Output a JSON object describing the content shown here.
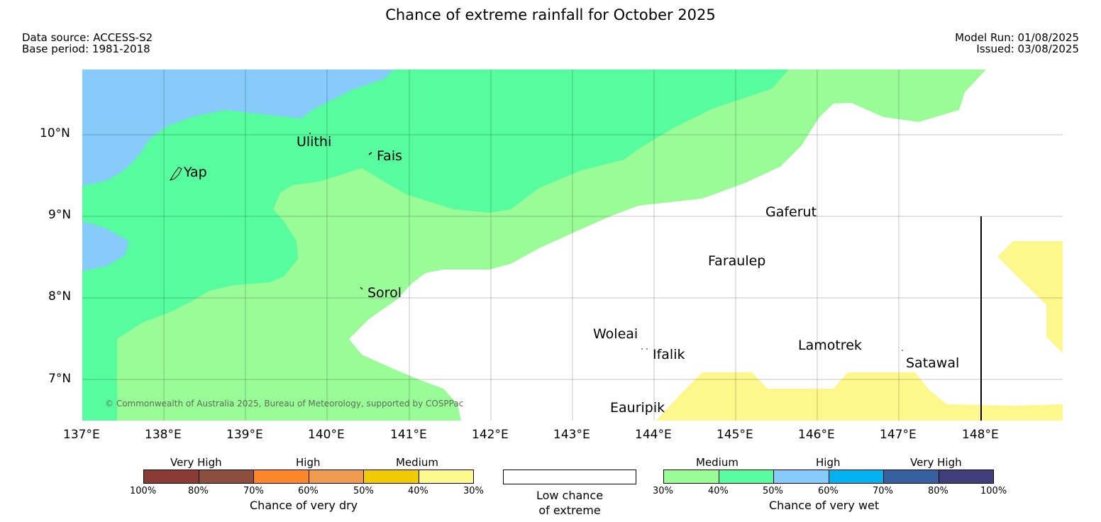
{
  "header": {
    "title": "Chance of extreme rainfall for October 2025",
    "data_source": "Data source: ACCESS-S2",
    "base_period": "Base period: 1981-2018",
    "model_run": "Model Run: 01/08/2025",
    "issued": "Issued: 03/08/2025"
  },
  "map": {
    "lat_labels": [
      "10°N",
      "9°N",
      "8°N",
      "7°N"
    ],
    "lon_labels": [
      "137°E",
      "138°E",
      "139°E",
      "140°E",
      "141°E",
      "142°E",
      "143°E",
      "144°E",
      "145°E",
      "146°E",
      "147°E",
      "148°E"
    ],
    "places": {
      "yap": "Yap",
      "ulithi": "Ulithi",
      "fais": "Fais",
      "gaferut": "Gaferut",
      "faraulep": "Faraulep",
      "sorol": "Sorol",
      "woleai": "Woleai",
      "ifalik": "Ifalik",
      "lamotrek": "Lamotrek",
      "satawal": "Satawal",
      "eauripik": "Eauripik"
    },
    "copyright": "© Commonwealth of Australia 2025, Bureau of Meteorology, supported by COSPPac",
    "colors": {
      "wet_medium_30_40": "#9afc96",
      "wet_medium_40_50": "#57fc9e",
      "wet_high_50_60": "#87cbfb",
      "dry_medium_30_40": "#fdf78c"
    }
  },
  "legend": {
    "dry": {
      "headers": [
        "Very High",
        "High",
        "Medium"
      ],
      "ticks": [
        "100%",
        "80%",
        "70%",
        "60%",
        "50%",
        "40%",
        "30%"
      ],
      "colors": [
        "#8b3a34",
        "#8c4f3d",
        "#fe8628",
        "#ef9b4e",
        "#f1cb01",
        "#fdf78c"
      ],
      "title": "Chance of very dry"
    },
    "neutral": {
      "line1": "Low chance",
      "line2": "of extreme"
    },
    "wet": {
      "headers": [
        "Medium",
        "High",
        "Very High"
      ],
      "ticks": [
        "30%",
        "40%",
        "50%",
        "60%",
        "70%",
        "80%",
        "100%"
      ],
      "colors": [
        "#9afc96",
        "#57fc9e",
        "#87cbfb",
        "#00b2ef",
        "#3561a0",
        "#3f3d7a"
      ],
      "title": "Chance of very wet"
    }
  }
}
